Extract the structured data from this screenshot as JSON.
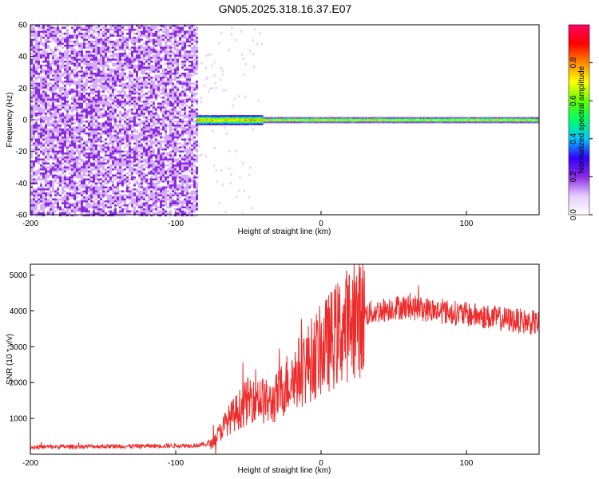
{
  "figure": {
    "title": "GN05.2025.318.16.37.E07"
  },
  "colors": {
    "axis": "#000000",
    "signal_line": "#ee2b2b",
    "noise_purple": "#7a2cf0"
  },
  "chart_data": [
    {
      "type": "heatmap",
      "title": "GN05.2025.318.16.37.E07",
      "xlabel": "Height of straight line (km)",
      "ylabel": "Frequency (Hz)",
      "xlim": [
        -200,
        150
      ],
      "ylim": [
        -60,
        60
      ],
      "xticks": [
        -200,
        -100,
        0,
        100
      ],
      "yticks": [
        60,
        40,
        20,
        0,
        -20,
        -40,
        -60
      ],
      "features": [
        {
          "name": "noise region",
          "x_from": -200,
          "x_to": -86,
          "amplitude": 0.1
        },
        {
          "name": "signal band",
          "x_from": -86,
          "x_to": 150,
          "center_freq_hz": 0,
          "half_width_hz": 3,
          "peak_amplitude": 0.9
        }
      ],
      "colorbar": {
        "label": "Normalized spectral amplitude",
        "range": [
          0,
          1
        ],
        "ticks": [
          0.0,
          0.2,
          0.4,
          0.6,
          0.8
        ],
        "tick_labels": [
          "0.0",
          "0.2",
          "0.4",
          "0.6",
          "0.8"
        ],
        "colormap": [
          "#ffffff",
          "#e6ccff",
          "#8a2be2",
          "#3300ff",
          "#00c8ff",
          "#00ff66",
          "#66ff00",
          "#ffff00",
          "#ff8800",
          "#ff0000",
          "#ff0066"
        ]
      }
    },
    {
      "type": "line",
      "xlabel": "Height of straight line (km)",
      "ylabel": "SNR (10 * v/v)",
      "xlim": [
        -200,
        150
      ],
      "ylim": [
        0,
        5300
      ],
      "xticks": [
        -200,
        -100,
        0,
        100
      ],
      "yticks": [
        1000,
        2000,
        3000,
        4000,
        5000
      ],
      "series": [
        {
          "color": "#ee2b2b",
          "x": [
            -200,
            -180,
            -160,
            -140,
            -120,
            -100,
            -85,
            -75,
            -70,
            -65,
            -60,
            -55,
            -50,
            -45,
            -40,
            -35,
            -30,
            -25,
            -20,
            -15,
            -10,
            -5,
            0,
            5,
            10,
            15,
            20,
            25,
            30,
            40,
            50,
            60,
            70,
            80,
            90,
            100,
            110,
            120,
            130,
            140,
            150
          ],
          "values": [
            200,
            210,
            220,
            220,
            230,
            240,
            250,
            300,
            600,
            900,
            1100,
            1300,
            1500,
            1700,
            1500,
            1400,
            1600,
            1900,
            2100,
            2300,
            2500,
            2700,
            2900,
            3100,
            3300,
            3500,
            3700,
            3800,
            3900,
            4000,
            4100,
            4100,
            4050,
            4000,
            3950,
            3900,
            3850,
            3800,
            3750,
            3700,
            3650
          ]
        }
      ]
    }
  ]
}
